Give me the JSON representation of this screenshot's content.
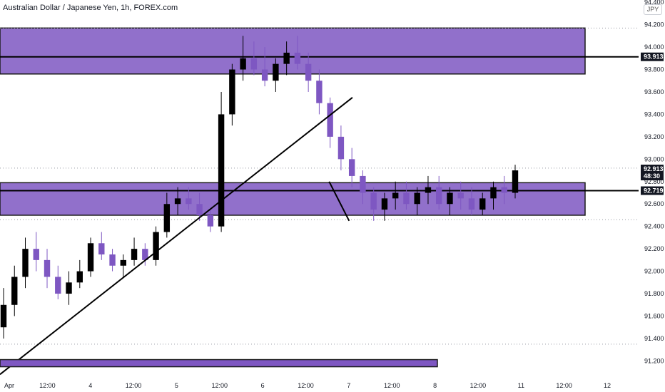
{
  "header": {
    "title": "Australian Dollar / Japanese Yen, 1h, FOREX.com",
    "currency": "JPY"
  },
  "chart_data": {
    "type": "candlestick",
    "y_range": [
      91.05,
      94.42
    ],
    "y_ticks": [
      "94.400",
      "94.200",
      "94.000",
      "93.800",
      "93.600",
      "93.400",
      "93.200",
      "93.000",
      "92.800",
      "92.600",
      "92.400",
      "92.200",
      "92.000",
      "91.800",
      "91.600",
      "91.400",
      "91.200"
    ],
    "x_ticks": [
      "Apr",
      "12:00",
      "4",
      "12:00",
      "5",
      "12:00",
      "6",
      "12:00",
      "7",
      "12:00",
      "8",
      "12:00",
      "11",
      "12:00",
      "12"
    ],
    "price_tags": [
      {
        "label": "93.913",
        "value": 93.913,
        "style": "dark"
      },
      {
        "label": "92.913",
        "value": 92.913,
        "style": "dark",
        "sub": "48:30"
      },
      {
        "label": "92.719",
        "value": 92.719,
        "style": "dark"
      }
    ],
    "zones": [
      {
        "name": "resistance-zone",
        "top": 94.17,
        "bottom": 93.76
      },
      {
        "name": "support-zone",
        "top": 92.79,
        "bottom": 92.5
      }
    ],
    "horizontal_lines": [
      93.913,
      92.719
    ],
    "dotted_lines": [
      94.17,
      92.92,
      92.46,
      91.35
    ],
    "candles": [
      [
        91.5,
        91.85,
        91.4,
        91.7
      ],
      [
        91.7,
        92.05,
        91.6,
        91.95
      ],
      [
        91.95,
        92.3,
        91.85,
        92.2
      ],
      [
        92.2,
        92.35,
        92.0,
        92.1
      ],
      [
        92.1,
        92.2,
        91.85,
        91.95
      ],
      [
        91.95,
        92.05,
        91.75,
        91.8
      ],
      [
        91.8,
        92.0,
        91.7,
        91.9
      ],
      [
        91.9,
        92.1,
        91.85,
        92.0
      ],
      [
        92.0,
        92.3,
        91.95,
        92.25
      ],
      [
        92.25,
        92.35,
        92.1,
        92.15
      ],
      [
        92.15,
        92.2,
        92.0,
        92.05
      ],
      [
        92.05,
        92.15,
        91.95,
        92.1
      ],
      [
        92.1,
        92.3,
        92.05,
        92.2
      ],
      [
        92.2,
        92.25,
        92.05,
        92.1
      ],
      [
        92.1,
        92.4,
        92.05,
        92.35
      ],
      [
        92.35,
        92.7,
        92.3,
        92.6
      ],
      [
        92.6,
        92.75,
        92.5,
        92.65
      ],
      [
        92.65,
        92.75,
        92.55,
        92.6
      ],
      [
        92.6,
        92.7,
        92.45,
        92.5
      ],
      [
        92.5,
        92.55,
        92.35,
        92.4
      ],
      [
        92.4,
        93.6,
        92.35,
        93.4
      ],
      [
        93.4,
        93.85,
        93.3,
        93.8
      ],
      [
        93.8,
        94.1,
        93.7,
        93.9
      ],
      [
        93.9,
        94.05,
        93.75,
        93.8
      ],
      [
        93.8,
        94.0,
        93.65,
        93.7
      ],
      [
        93.7,
        93.9,
        93.6,
        93.85
      ],
      [
        93.85,
        94.05,
        93.75,
        93.95
      ],
      [
        93.95,
        94.1,
        93.8,
        93.85
      ],
      [
        93.85,
        93.95,
        93.6,
        93.7
      ],
      [
        93.7,
        93.8,
        93.4,
        93.5
      ],
      [
        93.5,
        93.55,
        93.1,
        93.2
      ],
      [
        93.2,
        93.3,
        92.9,
        93.0
      ],
      [
        93.0,
        93.1,
        92.75,
        92.85
      ],
      [
        92.85,
        92.9,
        92.6,
        92.7
      ],
      [
        92.7,
        92.75,
        92.45,
        92.55
      ],
      [
        92.55,
        92.7,
        92.45,
        92.65
      ],
      [
        92.65,
        92.8,
        92.55,
        92.7
      ],
      [
        92.7,
        92.8,
        92.55,
        92.6
      ],
      [
        92.6,
        92.75,
        92.5,
        92.7
      ],
      [
        92.7,
        92.85,
        92.6,
        92.75
      ],
      [
        92.75,
        92.85,
        92.55,
        92.6
      ],
      [
        92.6,
        92.75,
        92.5,
        92.7
      ],
      [
        92.7,
        92.8,
        92.55,
        92.65
      ],
      [
        92.65,
        92.75,
        92.5,
        92.55
      ],
      [
        92.55,
        92.7,
        92.5,
        92.65
      ],
      [
        92.65,
        92.8,
        92.55,
        92.75
      ],
      [
        92.75,
        92.85,
        92.6,
        92.7
      ],
      [
        92.7,
        92.95,
        92.65,
        92.9
      ]
    ]
  },
  "drawings": {
    "trendline": {
      "from": [
        0,
        91.08
      ],
      "to": [
        0.53,
        93.55
      ]
    },
    "small_line": {
      "from": [
        0.495,
        92.8
      ],
      "to": [
        0.525,
        92.45
      ]
    },
    "bottom_bar": {
      "value": 91.18
    }
  }
}
